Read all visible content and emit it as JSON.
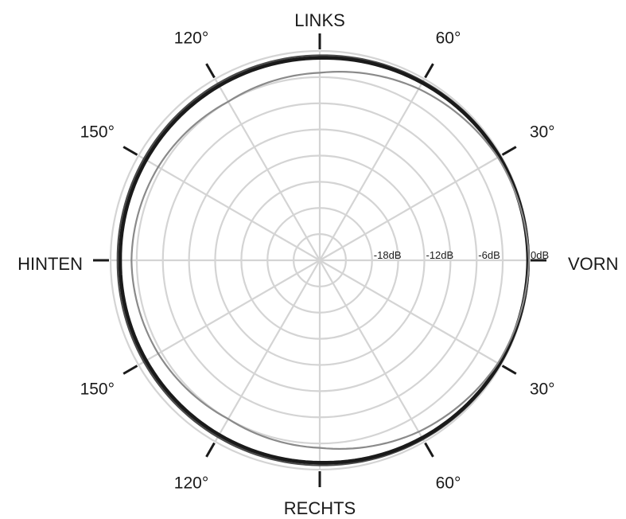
{
  "chart_data": {
    "type": "polar",
    "title": "",
    "direction_labels": {
      "front": "VORN",
      "left": "LINKS",
      "back": "HINTEN",
      "right": "RECHTS"
    },
    "angle_labels": [
      {
        "angle": 30,
        "text": "30°"
      },
      {
        "angle": 60,
        "text": "60°"
      },
      {
        "angle": 120,
        "text": "120°"
      },
      {
        "angle": 150,
        "text": "150°"
      },
      {
        "angle": -30,
        "text": "30°"
      },
      {
        "angle": -60,
        "text": "60°"
      },
      {
        "angle": -120,
        "text": "120°"
      },
      {
        "angle": -150,
        "text": "150°"
      }
    ],
    "radial_ticks": [
      {
        "value": -18,
        "text": "-18dB"
      },
      {
        "value": -12,
        "text": "-12dB"
      },
      {
        "value": -6,
        "text": "-6dB"
      },
      {
        "value": 0,
        "text": "0dB"
      }
    ],
    "radial_range": [
      -24,
      0
    ],
    "ring_step_db": 3,
    "angle_grid_step": 30,
    "grid": true,
    "grid_color": "#d4d4d4",
    "series": [
      {
        "color": "#4a4a4a",
        "angles": [
          0,
          30,
          60,
          90,
          120,
          150,
          180,
          -150,
          -120,
          -90,
          -60,
          -30
        ],
        "values": [
          0,
          -0.1,
          -0.3,
          -0.5,
          -0.6,
          -0.7,
          -0.8,
          -0.7,
          -0.6,
          -0.5,
          -0.3,
          -0.1
        ]
      },
      {
        "color": "#1a1a1a",
        "angles": [
          0,
          30,
          60,
          90,
          120,
          150,
          180,
          -150,
          -120,
          -90,
          -60,
          -30
        ],
        "values": [
          -0.1,
          -0.2,
          -0.5,
          -0.8,
          -0.9,
          -1.0,
          -1.1,
          -1.0,
          -0.9,
          -0.8,
          -0.5,
          -0.2
        ]
      },
      {
        "color": "#8a8a8a",
        "angles": [
          0,
          30,
          60,
          90,
          120,
          150,
          180,
          -150,
          -120,
          -90,
          -60,
          -30
        ],
        "values": [
          0,
          -0.4,
          -1.3,
          -2.5,
          -3.0,
          -2.6,
          -2.4,
          -2.6,
          -3.0,
          -2.5,
          -1.3,
          -0.4
        ]
      }
    ]
  }
}
